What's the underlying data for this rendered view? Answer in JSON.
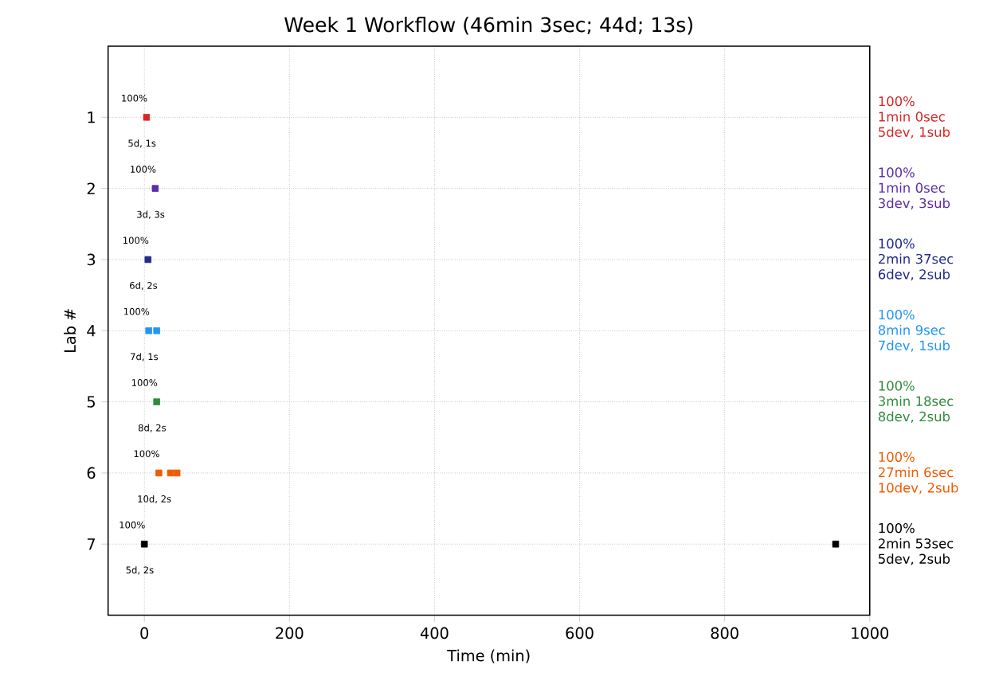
{
  "chart_data": {
    "type": "scatter",
    "title": "Week 1 Workflow (46min 3sec; 44d; 13s)",
    "xlabel": "Time (min)",
    "ylabel": "Lab #",
    "xlim": [
      -50,
      1000
    ],
    "ylim": [
      8,
      0
    ],
    "xticks": [
      0,
      200,
      400,
      600,
      800,
      1000
    ],
    "yticks": [
      1,
      2,
      3,
      4,
      5,
      6,
      7
    ],
    "grid": true,
    "series": [
      {
        "name": "100%\n1min 0sec\n5dev, 1sub",
        "color": "#d62728",
        "x": [
          3
        ],
        "values": [
          1
        ]
      },
      {
        "name": "100%\n1min 0sec\n3dev, 3sub",
        "color": "#5b2da8",
        "x": [
          15
        ],
        "values": [
          2
        ]
      },
      {
        "name": "100%\n2min 37sec\n6dev, 2sub",
        "color": "#1f2a8a",
        "x": [
          5
        ],
        "values": [
          3
        ]
      },
      {
        "name": "100%\n8min 9sec\n7dev, 1sub",
        "color": "#2196f3",
        "x": [
          6,
          17
        ],
        "values": [
          4,
          4
        ]
      },
      {
        "name": "100%\n3min 18sec\n8dev, 2sub",
        "color": "#2e8b3a",
        "x": [
          17
        ],
        "values": [
          5
        ]
      },
      {
        "name": "100%\n27min 6sec\n10dev, 2sub",
        "color": "#f05a00",
        "x": [
          20,
          36,
          45
        ],
        "values": [
          6,
          6,
          6
        ]
      },
      {
        "name": "100%\n2min 53sec\n5dev, 2sub",
        "color": "#000000",
        "x": [
          0,
          953
        ],
        "values": [
          7,
          7
        ]
      }
    ],
    "marker": "square",
    "annotations": [
      "100%",
      "5d, 1s",
      "100%",
      "3d, 3s",
      "100%",
      "6d, 2s",
      "100%",
      "7d, 1s",
      "100%",
      "8d, 2s",
      "100%",
      "10d, 2s",
      "100%",
      "5d, 2s"
    ]
  }
}
